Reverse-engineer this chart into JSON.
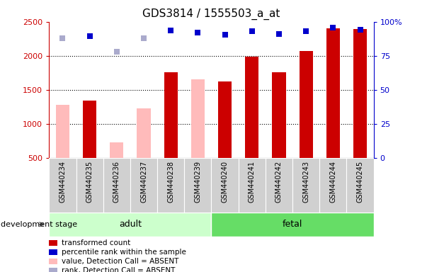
{
  "title": "GDS3814 / 1555503_a_at",
  "samples": [
    "GSM440234",
    "GSM440235",
    "GSM440236",
    "GSM440237",
    "GSM440238",
    "GSM440239",
    "GSM440240",
    "GSM440241",
    "GSM440242",
    "GSM440243",
    "GSM440244",
    "GSM440245"
  ],
  "red_bars": [
    null,
    1340,
    null,
    null,
    1760,
    null,
    1620,
    1990,
    1760,
    2070,
    2400,
    2390
  ],
  "pink_bars": [
    1280,
    null,
    730,
    1230,
    null,
    1650,
    null,
    null,
    null,
    null,
    null,
    null
  ],
  "blue_squares_val": [
    null,
    2290,
    null,
    null,
    2370,
    2340,
    2310,
    2360,
    2320,
    2360,
    2410,
    2380
  ],
  "lavender_squares_val": [
    2260,
    null,
    2060,
    2260,
    null,
    null,
    null,
    null,
    null,
    null,
    null,
    null
  ],
  "ylim_left": [
    500,
    2500
  ],
  "ylim_right": [
    0,
    100
  ],
  "yticks_left": [
    500,
    1000,
    1500,
    2000,
    2500
  ],
  "yticks_right": [
    0,
    25,
    50,
    75,
    100
  ],
  "ytick_labels_right": [
    "0",
    "25",
    "50",
    "75",
    "100%"
  ],
  "adult_label": "adult",
  "fetal_label": "fetal",
  "dev_stage_label": "development stage",
  "legend_labels": [
    "transformed count",
    "percentile rank within the sample",
    "value, Detection Call = ABSENT",
    "rank, Detection Call = ABSENT"
  ],
  "bar_width": 0.5,
  "red_color": "#cc0000",
  "pink_color": "#ffbbbb",
  "blue_color": "#0000cc",
  "lavender_color": "#aaaacc",
  "square_size": 40,
  "tick_color_left": "#cc0000",
  "tick_color_right": "#0000cc",
  "adult_color": "#ccffcc",
  "fetal_color": "#66dd66",
  "sample_bg_color": "#d0d0d0",
  "grid_dotted_vals": [
    1000,
    1500,
    2000
  ]
}
